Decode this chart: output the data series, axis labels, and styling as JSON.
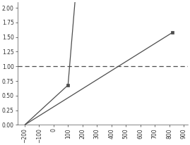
{
  "line1_x": [
    -200,
    100,
    148
  ],
  "line1_y": [
    0.0,
    0.68,
    2.1
  ],
  "line2_x": [
    -200,
    820
  ],
  "line2_y": [
    0.0,
    1.575
  ],
  "hline_y": 1.0,
  "hline_xmin": -250,
  "hline_xmax": 930,
  "marker1_x": 100,
  "marker1_y": 0.68,
  "marker2_x": 820,
  "marker2_y": 1.575,
  "xlim": [
    -250,
    930
  ],
  "ylim": [
    0.0,
    2.1
  ],
  "xticks": [
    -200,
    -100,
    0,
    100,
    200,
    300,
    400,
    500,
    600,
    700,
    800,
    900
  ],
  "yticks": [
    0.0,
    0.25,
    0.5,
    0.75,
    1.0,
    1.25,
    1.5,
    1.75,
    2.0
  ],
  "line_color": "#4d4d4d",
  "dash_color": "#4d4d4d",
  "background_color": "#ffffff",
  "tick_fontsize": 5.5,
  "line_width": 0.9,
  "marker_size": 3.5
}
